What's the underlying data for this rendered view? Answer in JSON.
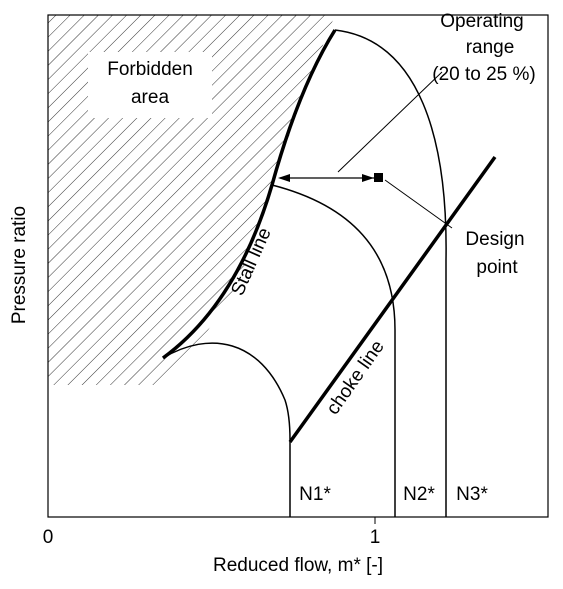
{
  "labels": {
    "forbidden": [
      "Forbidden",
      "area"
    ],
    "operating": [
      "Operating",
      "range",
      "(20 to 25 %)"
    ],
    "design": [
      "Design",
      "point"
    ],
    "stall": "Stall line",
    "choke": "choke line",
    "speeds": [
      "N1*",
      "N2*",
      "N3*"
    ]
  },
  "axes": {
    "x_label": "Reduced flow, m* [-]",
    "y_label": "Pressure ratio",
    "x_ticks": [
      "0",
      "1"
    ]
  }
}
